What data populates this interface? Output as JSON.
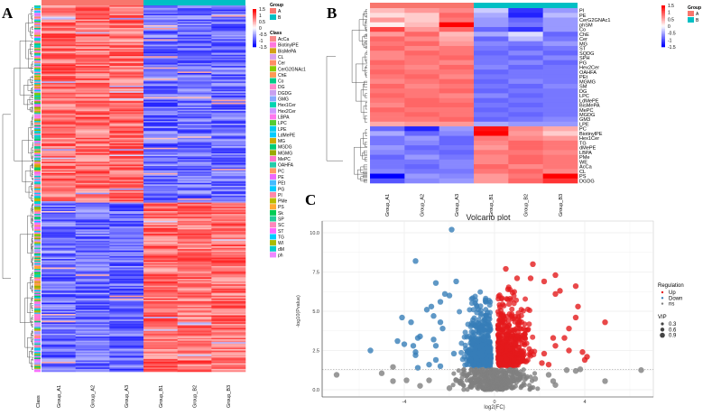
{
  "panels": {
    "a": "A",
    "b": "B",
    "c": "C"
  },
  "colors": {
    "group_a": "#f8766d",
    "group_b": "#00bfc4",
    "high": "#ff0000",
    "mid": "#ffffff",
    "low": "#0000ff",
    "up": "#e41a1c",
    "down": "#377eb8",
    "ns": "#808080"
  },
  "chart_data": [
    {
      "type": "heatmap",
      "id": "A",
      "columns": [
        "Group_A1",
        "Group_A2",
        "Group_A3",
        "Group_B1",
        "Group_B2",
        "Group_B3"
      ],
      "class_label": "Class",
      "row_count": 260,
      "pattern": "upper ~55% of rows high in group A / low in group B; lower rows low in A / high in B",
      "scale": {
        "title": "",
        "ticks": [
          "1.5",
          "1",
          "0.5",
          "0",
          "-0.5",
          "-1",
          "-1.5"
        ]
      },
      "group_legend": {
        "title": "Group",
        "items": [
          "A",
          "B"
        ]
      },
      "class_legend": {
        "title": "Class",
        "items": [
          {
            "name": "AcCa",
            "color": "#f88a8a"
          },
          {
            "name": "BiotinylPE",
            "color": "#ff77dd"
          },
          {
            "name": "BisMePA",
            "color": "#d4a017"
          },
          {
            "name": "CL",
            "color": "#d9a0f0"
          },
          {
            "name": "Cer",
            "color": "#ff8c66"
          },
          {
            "name": "CerG2GNAc1",
            "color": "#88cc00"
          },
          {
            "name": "ChE",
            "color": "#ff9955"
          },
          {
            "name": "Co",
            "color": "#00cc88"
          },
          {
            "name": "DG",
            "color": "#ff88cc"
          },
          {
            "name": "DGDG",
            "color": "#c8a0f0"
          },
          {
            "name": "GMG",
            "color": "#88aaff"
          },
          {
            "name": "Hex1Cer",
            "color": "#00d4b0"
          },
          {
            "name": "Hex2Cer",
            "color": "#cc99ff"
          },
          {
            "name": "LBPA",
            "color": "#ff77ee"
          },
          {
            "name": "LPC",
            "color": "#55cc33"
          },
          {
            "name": "LPE",
            "color": "#00ccee"
          },
          {
            "name": "LdMePE",
            "color": "#00ccff"
          },
          {
            "name": "MG",
            "color": "#ccaa00"
          },
          {
            "name": "MGDG",
            "color": "#00cc77"
          },
          {
            "name": "MGMG",
            "color": "#99aa00"
          },
          {
            "name": "MePC",
            "color": "#ff77cc"
          },
          {
            "name": "OAHFA",
            "color": "#22ccaa"
          },
          {
            "name": "PC",
            "color": "#ff9966"
          },
          {
            "name": "PE",
            "color": "#ee66ff"
          },
          {
            "name": "PEt",
            "color": "#44bbff"
          },
          {
            "name": "PG",
            "color": "#00ccff"
          },
          {
            "name": "PI",
            "color": "#ff88aa"
          },
          {
            "name": "PMe",
            "color": "#bbbb00"
          },
          {
            "name": "PS",
            "color": "#ffaa33"
          },
          {
            "name": "Sk",
            "color": "#00cc55"
          },
          {
            "name": "SP",
            "color": "#22cc99"
          },
          {
            "name": "SC",
            "color": "#ff88bb"
          },
          {
            "name": "ST",
            "color": "#ff66ff"
          },
          {
            "name": "TG",
            "color": "#00ccff"
          },
          {
            "name": "WI",
            "color": "#aabb00"
          },
          {
            "name": "dM",
            "color": "#00cccc"
          },
          {
            "name": "ph",
            "color": "#ee88ff"
          }
        ]
      }
    },
    {
      "type": "heatmap",
      "id": "B",
      "columns": [
        "Group_A1",
        "Group_A2",
        "Group_A3",
        "Group_B1",
        "Group_B2",
        "Group_B3"
      ],
      "scale": {
        "ticks": [
          "1.5",
          "1",
          "0.5",
          "0",
          "-0.5",
          "-1",
          "-1.5"
        ]
      },
      "group_legend": {
        "title": "Group",
        "items": [
          "A",
          "B"
        ]
      },
      "rows": [
        {
          "name": "PI",
          "values": [
            0.4,
            0.6,
            0.7,
            -0.3,
            -1.2,
            -0.6
          ]
        },
        {
          "name": "PE",
          "values": [
            0.2,
            0.3,
            0.9,
            -0.5,
            -1.3,
            -0.4
          ]
        },
        {
          "name": "CerG2GNAc1",
          "values": [
            0.6,
            0.3,
            0.8,
            -0.6,
            -0.9,
            -0.6
          ]
        },
        {
          "name": "phSM",
          "values": [
            0.1,
            0.4,
            1.5,
            -0.6,
            -0.8,
            -0.6
          ]
        },
        {
          "name": "Co",
          "values": [
            1.1,
            0.6,
            0.9,
            -0.9,
            -1.2,
            -0.6
          ]
        },
        {
          "name": "ChE",
          "values": [
            0.6,
            0.9,
            0.4,
            -0.5,
            -0.2,
            -0.9
          ]
        },
        {
          "name": "Cer",
          "values": [
            0.9,
            0.7,
            0.5,
            -0.9,
            -0.4,
            -0.8
          ]
        },
        {
          "name": "MG",
          "values": [
            0.8,
            0.9,
            0.6,
            -0.7,
            -0.8,
            -0.6
          ]
        },
        {
          "name": "ST",
          "values": [
            0.9,
            0.7,
            0.8,
            -0.8,
            -0.9,
            -0.8
          ]
        },
        {
          "name": "SQDG",
          "values": [
            0.7,
            0.9,
            0.8,
            -0.9,
            -0.7,
            -0.9
          ]
        },
        {
          "name": "SPH",
          "values": [
            0.7,
            0.8,
            0.9,
            -0.8,
            -0.9,
            -0.7
          ]
        },
        {
          "name": "PG",
          "values": [
            0.9,
            0.8,
            0.7,
            -0.8,
            -0.7,
            -0.9
          ]
        },
        {
          "name": "Hex2Cer",
          "values": [
            0.8,
            0.7,
            0.9,
            -0.7,
            -0.9,
            -0.8
          ]
        },
        {
          "name": "OAHFA",
          "values": [
            0.9,
            0.8,
            0.8,
            -0.9,
            -0.8,
            -0.8
          ]
        },
        {
          "name": "PEt",
          "values": [
            0.8,
            0.9,
            0.7,
            -0.8,
            -0.8,
            -0.8
          ]
        },
        {
          "name": "MGMG",
          "values": [
            0.7,
            0.8,
            0.9,
            -0.9,
            -0.7,
            -0.8
          ]
        },
        {
          "name": "SM",
          "values": [
            0.9,
            0.7,
            0.8,
            -0.8,
            -0.9,
            -0.7
          ]
        },
        {
          "name": "DG",
          "values": [
            0.8,
            0.8,
            0.9,
            -0.9,
            -0.8,
            -0.8
          ]
        },
        {
          "name": "LPC",
          "values": [
            0.9,
            0.8,
            0.7,
            -0.7,
            -0.9,
            -0.8
          ]
        },
        {
          "name": "LdMePE",
          "values": [
            0.8,
            0.9,
            0.8,
            -0.9,
            -0.8,
            -0.8
          ]
        },
        {
          "name": "BisMePA",
          "values": [
            0.7,
            0.9,
            0.9,
            -0.8,
            -0.9,
            -0.8
          ]
        },
        {
          "name": "MePC",
          "values": [
            0.9,
            0.8,
            0.8,
            -0.9,
            -0.8,
            -0.8
          ]
        },
        {
          "name": "MGDG",
          "values": [
            0.8,
            0.9,
            0.8,
            -0.8,
            -0.9,
            -0.8
          ]
        },
        {
          "name": "GM3",
          "values": [
            0.8,
            0.8,
            0.9,
            -0.9,
            -0.8,
            -0.7
          ]
        },
        {
          "name": "LPE",
          "values": [
            0.5,
            0.6,
            0.6,
            -0.5,
            -0.6,
            -0.6
          ]
        },
        {
          "name": "PC",
          "values": [
            -0.9,
            -1.3,
            -0.6,
            1.4,
            0.7,
            0.5
          ]
        },
        {
          "name": "BiotinylPE",
          "values": [
            -0.5,
            -0.9,
            -0.7,
            1.5,
            0.6,
            0.3
          ]
        },
        {
          "name": "Hex1Cer",
          "values": [
            -0.8,
            -0.6,
            -0.9,
            0.8,
            0.7,
            0.6
          ]
        },
        {
          "name": "TG",
          "values": [
            -0.8,
            -0.7,
            -0.9,
            0.7,
            0.9,
            0.8
          ]
        },
        {
          "name": "dMePE",
          "values": [
            -0.6,
            -0.9,
            -0.8,
            0.6,
            0.9,
            0.8
          ]
        },
        {
          "name": "LBPA",
          "values": [
            -0.7,
            -0.8,
            -0.9,
            0.8,
            0.8,
            0.7
          ]
        },
        {
          "name": "PMe",
          "values": [
            -0.9,
            -0.6,
            -0.8,
            0.7,
            0.9,
            0.8
          ]
        },
        {
          "name": "WE",
          "values": [
            -0.8,
            -0.8,
            -0.7,
            0.7,
            0.9,
            0.8
          ]
        },
        {
          "name": "AcCa",
          "values": [
            -0.8,
            -0.9,
            -0.7,
            0.9,
            0.7,
            0.8
          ]
        },
        {
          "name": "CL",
          "values": [
            -0.7,
            -0.8,
            -0.8,
            0.8,
            0.9,
            0.7
          ]
        },
        {
          "name": "PS",
          "values": [
            -1.5,
            -0.6,
            -0.7,
            0.6,
            0.8,
            1.5
          ]
        },
        {
          "name": "DGDG",
          "values": [
            -1.0,
            -0.7,
            -0.6,
            0.6,
            0.9,
            1.2
          ]
        }
      ]
    },
    {
      "type": "scatter",
      "id": "C",
      "title": "Volcano plot",
      "xlabel": "log2(FC)",
      "ylabel": "-log10(Pvalue)",
      "xlim": [
        -7.6,
        7.1
      ],
      "ylim": [
        -0.4,
        10.9
      ],
      "xticks": [
        "-4",
        "0",
        "4"
      ],
      "xtick_values": [
        -4,
        0,
        4
      ],
      "yticks": [
        "0.0",
        "2.5",
        "5.0",
        "7.5",
        "10.0"
      ],
      "ytick_values": [
        0,
        2.5,
        5,
        7.5,
        10
      ],
      "threshold_y": 1.3,
      "legend": {
        "title": "Regulation",
        "items": [
          "Up",
          "Down",
          "ns"
        ],
        "size_title": "VIP",
        "size_items": [
          "0.3",
          "0.6",
          "0.9"
        ]
      },
      "points": [
        [
          -1.9,
          10.2,
          "Down"
        ],
        [
          -3.5,
          8.2,
          "Down"
        ],
        [
          -2.6,
          6.8,
          "Down"
        ],
        [
          -1.7,
          6.9,
          "Down"
        ],
        [
          -2.2,
          6.1,
          "Down"
        ],
        [
          -2.0,
          6.0,
          "Down"
        ],
        [
          -0.4,
          5.7,
          "Down"
        ],
        [
          -2.4,
          5.6,
          "Down"
        ],
        [
          -2.8,
          5.3,
          "Down"
        ],
        [
          -3.0,
          5.1,
          "Down"
        ],
        [
          -4.1,
          4.6,
          "Down"
        ],
        [
          -3.7,
          4.3,
          "Down"
        ],
        [
          -2.7,
          4.7,
          "Down"
        ],
        [
          -2.4,
          4.3,
          "Down"
        ],
        [
          -2.3,
          3.9,
          "Down"
        ],
        [
          -4.3,
          3.1,
          "Down"
        ],
        [
          -3.4,
          3.3,
          "Down"
        ],
        [
          -3.3,
          3.4,
          "Down"
        ],
        [
          -4.0,
          2.9,
          "Down"
        ],
        [
          -3.6,
          2.8,
          "Down"
        ],
        [
          -5.5,
          2.5,
          "Down"
        ],
        [
          -3.5,
          2.4,
          "Down"
        ],
        [
          -3.5,
          2.2,
          "Down"
        ],
        [
          -2.6,
          2.8,
          "Down"
        ],
        [
          -2.7,
          3.2,
          "Down"
        ],
        [
          -2.9,
          1.6,
          "Down"
        ],
        [
          -2.6,
          1.9,
          "Down"
        ],
        [
          -3.4,
          1.4,
          "Down"
        ],
        [
          -2.4,
          1.5,
          "Down"
        ],
        [
          -1.8,
          2.3,
          "Down"
        ],
        [
          0.5,
          7.7,
          "Up"
        ],
        [
          1.7,
          8.0,
          "Up"
        ],
        [
          1.0,
          7.1,
          "Up"
        ],
        [
          1.6,
          7.1,
          "Up"
        ],
        [
          2.7,
          7.3,
          "Up"
        ],
        [
          2.2,
          6.9,
          "Up"
        ],
        [
          3.6,
          6.6,
          "Up"
        ],
        [
          2.9,
          6.3,
          "Up"
        ],
        [
          0.6,
          6.4,
          "Up"
        ],
        [
          2.7,
          6.1,
          "Up"
        ],
        [
          3.7,
          5.3,
          "Up"
        ],
        [
          3.6,
          4.6,
          "Up"
        ],
        [
          4.9,
          4.3,
          "Up"
        ],
        [
          3.3,
          3.9,
          "Up"
        ],
        [
          3.1,
          3.3,
          "Up"
        ],
        [
          2.6,
          3.3,
          "Up"
        ],
        [
          3.3,
          2.5,
          "Up"
        ],
        [
          3.9,
          2.4,
          "Up"
        ],
        [
          4.1,
          2.1,
          "Up"
        ],
        [
          4.0,
          1.9,
          "Up"
        ],
        [
          2.7,
          2.8,
          "Up"
        ],
        [
          2.2,
          2.3,
          "Up"
        ],
        [
          2.4,
          1.6,
          "Up"
        ],
        [
          2.1,
          1.7,
          "Up"
        ],
        [
          1.4,
          1.8,
          "Up"
        ],
        [
          -7.0,
          0.95,
          "ns"
        ],
        [
          -5.0,
          1.05,
          "ns"
        ],
        [
          -4.5,
          1.45,
          "ns"
        ],
        [
          -4.5,
          0.55,
          "ns"
        ],
        [
          -3.9,
          0.6,
          "ns"
        ],
        [
          -3.3,
          0.25,
          "ns"
        ],
        [
          -2.9,
          0.6,
          "ns"
        ],
        [
          -2.0,
          0.1,
          "ns"
        ],
        [
          -1.7,
          0.6,
          "ns"
        ],
        [
          2.6,
          0.55,
          "ns"
        ],
        [
          3.2,
          1.25,
          "ns"
        ],
        [
          3.6,
          1.2,
          "ns"
        ],
        [
          3.8,
          1.3,
          "ns"
        ],
        [
          2.7,
          0.3,
          "ns"
        ],
        [
          4.9,
          0.55,
          "ns"
        ],
        [
          6.5,
          1.25,
          "ns"
        ],
        [
          2.4,
          0.95,
          "ns"
        ],
        [
          1.8,
          0.7,
          "ns"
        ],
        [
          -1.0,
          0.4,
          "ns"
        ],
        [
          0.3,
          0.1,
          "ns"
        ]
      ]
    }
  ]
}
